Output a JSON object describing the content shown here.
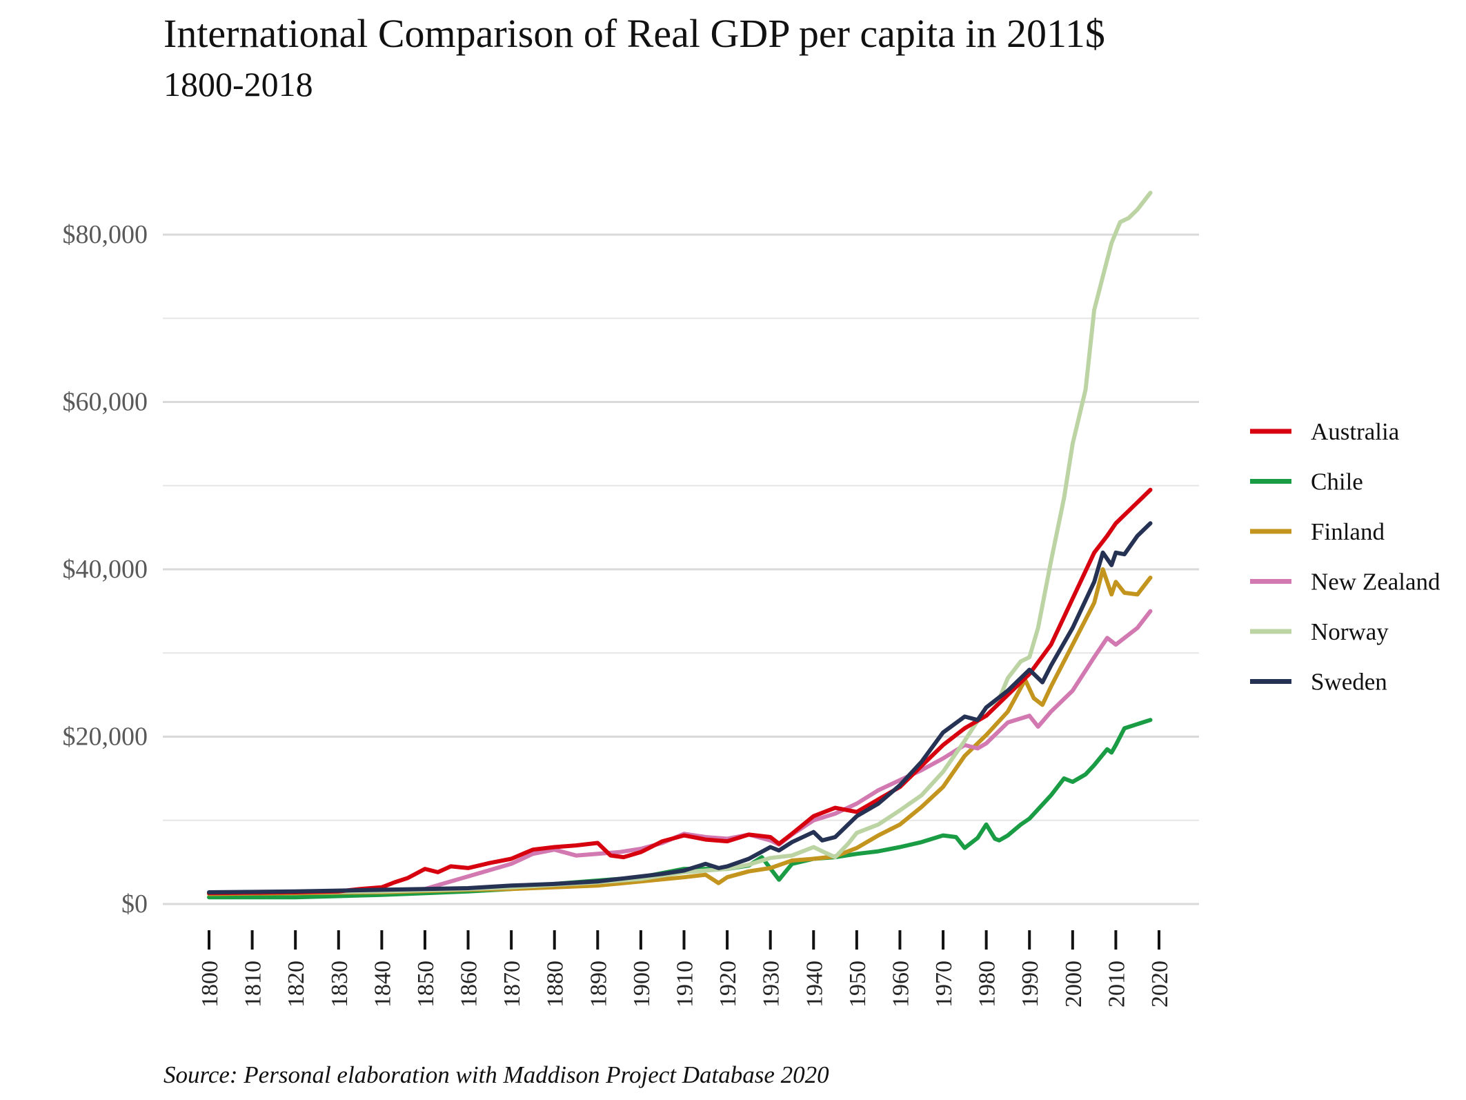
{
  "chart_data": {
    "type": "line",
    "title": "International Comparison of Real GDP per capita in 2011$",
    "subtitle": "1800-2018",
    "caption": "Source: Personal elaboration with Maddison Project Database 2020",
    "xlim": [
      1800,
      2020
    ],
    "ylim": [
      0,
      85000
    ],
    "x_ticks": [
      1800,
      1810,
      1820,
      1830,
      1840,
      1850,
      1860,
      1870,
      1880,
      1890,
      1900,
      1910,
      1920,
      1930,
      1940,
      1950,
      1960,
      1970,
      1980,
      1990,
      2000,
      2010,
      2020
    ],
    "y_ticks": [
      0,
      20000,
      40000,
      60000,
      80000
    ],
    "y_tick_labels": [
      "$0",
      "$20,000",
      "$40,000",
      "$60,000",
      "$80,000"
    ],
    "minor_gridlines": [
      10000,
      30000,
      50000,
      70000
    ],
    "grid": "horizontal",
    "legend_position": "right",
    "series": [
      {
        "name": "Australia",
        "color": "#d7000f",
        "x": [
          1800,
          1820,
          1830,
          1835,
          1840,
          1843,
          1846,
          1850,
          1853,
          1856,
          1860,
          1865,
          1870,
          1875,
          1880,
          1885,
          1890,
          1893,
          1896,
          1900,
          1905,
          1910,
          1915,
          1920,
          1925,
          1930,
          1932,
          1935,
          1940,
          1945,
          1950,
          1955,
          1960,
          1965,
          1970,
          1975,
          1980,
          1985,
          1990,
          1995,
          2000,
          2005,
          2008,
          2010,
          2015,
          2018
        ],
        "y": [
          1300,
          1400,
          1500,
          1800,
          2000,
          2600,
          3100,
          4200,
          3800,
          4500,
          4300,
          4900,
          5400,
          6500,
          6800,
          7000,
          7300,
          5800,
          5600,
          6200,
          7500,
          8200,
          7700,
          7500,
          8300,
          8000,
          7200,
          8400,
          10500,
          11500,
          11000,
          12500,
          14000,
          16500,
          19000,
          21000,
          22500,
          25000,
          27500,
          31000,
          36500,
          42000,
          44000,
          45500,
          48000,
          49500
        ]
      },
      {
        "name": "Chile",
        "color": "#1a9c45",
        "x": [
          1800,
          1820,
          1840,
          1860,
          1870,
          1880,
          1890,
          1900,
          1910,
          1920,
          1925,
          1928,
          1932,
          1935,
          1940,
          1945,
          1950,
          1955,
          1960,
          1965,
          1970,
          1973,
          1975,
          1978,
          1980,
          1982,
          1983,
          1985,
          1988,
          1990,
          1995,
          1998,
          2000,
          2003,
          2005,
          2008,
          2009,
          2010,
          2012,
          2015,
          2018
        ],
        "y": [
          800,
          800,
          1100,
          1500,
          1800,
          2400,
          2800,
          3200,
          4200,
          4200,
          4600,
          5600,
          2900,
          4800,
          5400,
          5600,
          6000,
          6300,
          6800,
          7400,
          8200,
          8000,
          6700,
          7900,
          9500,
          7800,
          7600,
          8200,
          9500,
          10200,
          13000,
          15000,
          14600,
          15500,
          16600,
          18500,
          18100,
          19000,
          21000,
          21500,
          22000
        ]
      },
      {
        "name": "Finland",
        "color": "#c3951e",
        "x": [
          1800,
          1820,
          1840,
          1860,
          1870,
          1880,
          1890,
          1900,
          1910,
          1915,
          1918,
          1920,
          1925,
          1930,
          1935,
          1940,
          1945,
          1950,
          1955,
          1960,
          1965,
          1970,
          1975,
          1980,
          1985,
          1989,
          1991,
          1993,
          1995,
          2000,
          2005,
          2007,
          2009,
          2010,
          2012,
          2015,
          2018
        ],
        "y": [
          1200,
          1300,
          1400,
          1700,
          1800,
          2000,
          2200,
          2700,
          3200,
          3500,
          2500,
          3200,
          3900,
          4300,
          5200,
          5400,
          5700,
          6700,
          8200,
          9500,
          11600,
          14000,
          17700,
          20200,
          23000,
          26800,
          24600,
          23800,
          26000,
          31000,
          36000,
          40000,
          37000,
          38500,
          37200,
          37000,
          39000
        ]
      },
      {
        "name": "New Zealand",
        "color": "#d279b1",
        "x": [
          1850,
          1860,
          1870,
          1875,
          1880,
          1885,
          1890,
          1895,
          1900,
          1905,
          1910,
          1915,
          1920,
          1925,
          1930,
          1932,
          1935,
          1940,
          1945,
          1950,
          1955,
          1960,
          1965,
          1970,
          1975,
          1978,
          1980,
          1985,
          1990,
          1992,
          1995,
          2000,
          2005,
          2008,
          2010,
          2015,
          2018
        ],
        "y": [
          1800,
          3300,
          4800,
          6000,
          6500,
          5800,
          6000,
          6200,
          6600,
          7300,
          8400,
          8000,
          7800,
          8300,
          7600,
          7100,
          8300,
          10000,
          10800,
          12000,
          13600,
          14800,
          16000,
          17400,
          19000,
          18600,
          19200,
          21700,
          22500,
          21200,
          23000,
          25500,
          29500,
          31800,
          31000,
          33000,
          35000
        ]
      },
      {
        "name": "Norway",
        "color": "#bcd4a4",
        "x": [
          1800,
          1820,
          1840,
          1860,
          1870,
          1880,
          1890,
          1900,
          1910,
          1920,
          1925,
          1930,
          1935,
          1940,
          1942,
          1945,
          1948,
          1950,
          1955,
          1960,
          1965,
          1970,
          1975,
          1980,
          1983,
          1985,
          1988,
          1990,
          1992,
          1995,
          1998,
          2000,
          2003,
          2005,
          2007,
          2009,
          2011,
          2013,
          2015,
          2018
        ],
        "y": [
          1300,
          1400,
          1500,
          1800,
          2000,
          2300,
          2600,
          3000,
          3800,
          4200,
          4700,
          5500,
          5800,
          6800,
          6300,
          5600,
          7200,
          8500,
          9500,
          11200,
          13000,
          15800,
          19500,
          23500,
          24500,
          27000,
          29000,
          29500,
          33000,
          41000,
          48500,
          55000,
          61500,
          71000,
          75000,
          79000,
          81500,
          82000,
          83000,
          85000
        ]
      },
      {
        "name": "Sweden",
        "color": "#263254",
        "x": [
          1800,
          1820,
          1840,
          1860,
          1870,
          1880,
          1890,
          1900,
          1905,
          1910,
          1915,
          1918,
          1920,
          1925,
          1930,
          1932,
          1935,
          1940,
          1942,
          1945,
          1950,
          1955,
          1960,
          1965,
          1970,
          1975,
          1978,
          1980,
          1985,
          1990,
          1993,
          1995,
          2000,
          2005,
          2007,
          2009,
          2010,
          2012,
          2015,
          2018
        ],
        "y": [
          1400,
          1500,
          1700,
          1900,
          2200,
          2400,
          2700,
          3300,
          3600,
          4000,
          4800,
          4300,
          4500,
          5400,
          6800,
          6400,
          7400,
          8600,
          7600,
          8000,
          10500,
          12000,
          14200,
          17000,
          20500,
          22400,
          22000,
          23500,
          25500,
          28000,
          26500,
          28500,
          33000,
          38500,
          42000,
          40500,
          42000,
          41800,
          44000,
          45500
        ]
      }
    ]
  }
}
